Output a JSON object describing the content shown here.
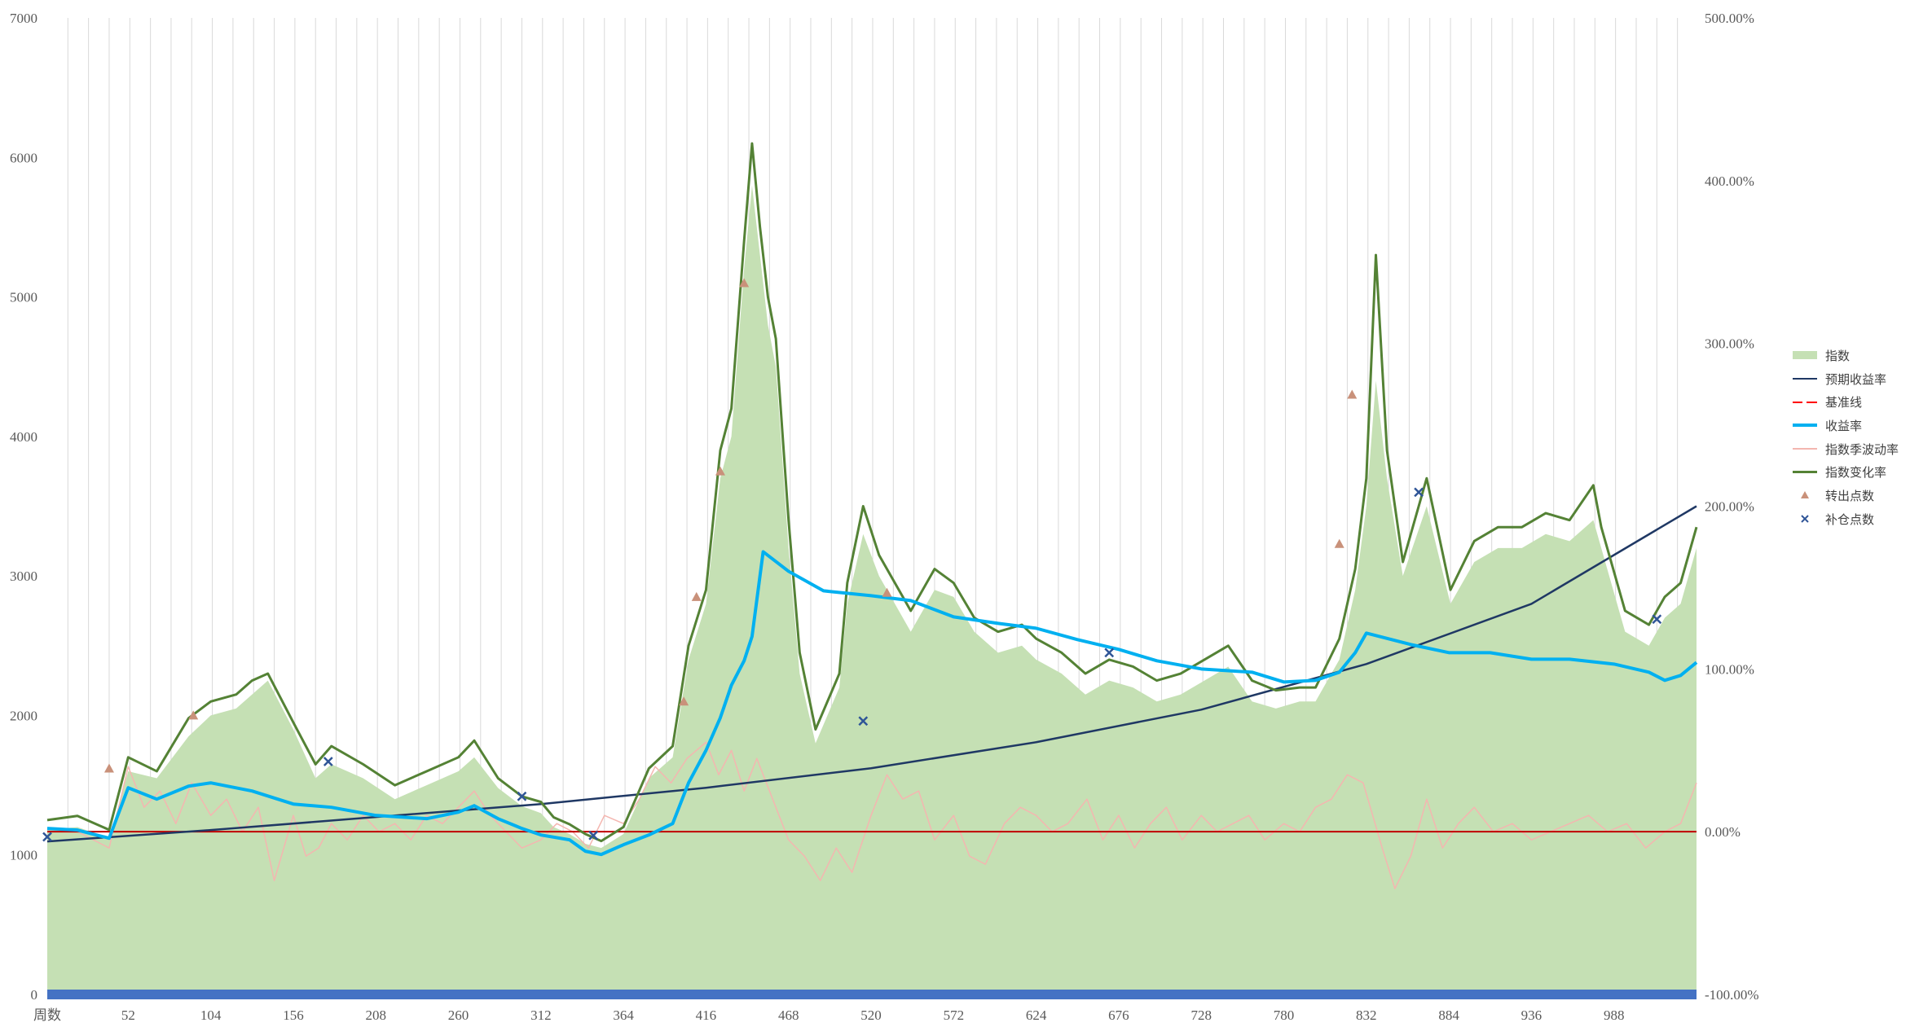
{
  "chart_data": {
    "type": "area",
    "title": "",
    "x_axis": {
      "label": "周数",
      "ticks": [
        52,
        104,
        156,
        208,
        260,
        312,
        364,
        416,
        468,
        520,
        572,
        624,
        676,
        728,
        780,
        832,
        884,
        936,
        988
      ],
      "range": [
        1,
        1040
      ]
    },
    "y_axis_left": {
      "ticks": [
        "0",
        "1000",
        "2000",
        "3000",
        "4000",
        "5000",
        "6000",
        "7000"
      ],
      "range": [
        0,
        7000
      ]
    },
    "y_axis_right": {
      "ticks": [
        "-100.00%",
        "0.00%",
        "100.00%",
        "200.00%",
        "300.00%",
        "400.00%",
        "500.00%"
      ],
      "range": [
        -100,
        500
      ]
    },
    "grid": "vertical",
    "legend_position": "right",
    "colors": {
      "index_area": "#c5e0b4",
      "expected_return": "#1f3864",
      "baseline": "#c00000",
      "return_rate": "#00b0f0",
      "seasonal_volatility": "#f4b6b0",
      "index_change": "#548235",
      "sell_marker": "#c9917a",
      "buy_marker": "#2f5597",
      "bottom_band": "#4472c4"
    },
    "legend": [
      {
        "key": "index_area",
        "label": "指数"
      },
      {
        "key": "expected_return",
        "label": "预期收益率"
      },
      {
        "key": "baseline",
        "label": "基准线"
      },
      {
        "key": "return_rate",
        "label": "收益率"
      },
      {
        "key": "seasonal_volatility",
        "label": "指数季波动率"
      },
      {
        "key": "index_change",
        "label": "指数变化率"
      },
      {
        "key": "sell_marker",
        "label": "转出点数"
      },
      {
        "key": "buy_marker",
        "label": "补仓点数"
      }
    ],
    "series": [
      {
        "key": "index_area",
        "name": "指数",
        "axis": "left",
        "x": [
          1,
          20,
          40,
          52,
          70,
          90,
          104,
          120,
          130,
          140,
          156,
          170,
          180,
          200,
          220,
          240,
          260,
          270,
          285,
          300,
          312,
          320,
          330,
          340,
          350,
          364,
          380,
          395,
          405,
          416,
          425,
          432,
          440,
          445,
          450,
          455,
          460,
          468,
          475,
          485,
          500,
          505,
          515,
          525,
          535,
          545,
          560,
          572,
          585,
          600,
          615,
          624,
          640,
          655,
          670,
          685,
          700,
          715,
          730,
          745,
          760,
          775,
          790,
          800,
          815,
          825,
          832,
          838,
          845,
          855,
          870,
          885,
          900,
          915,
          930,
          945,
          960,
          975,
          980,
          995,
          1010,
          1020,
          1030,
          1040
        ],
        "values": [
          1180,
          1200,
          1120,
          1600,
          1550,
          1850,
          2000,
          2050,
          2150,
          2250,
          1900,
          1550,
          1650,
          1550,
          1400,
          1500,
          1600,
          1700,
          1480,
          1350,
          1300,
          1200,
          1150,
          1080,
          1050,
          1150,
          1550,
          1700,
          2400,
          2800,
          3700,
          4000,
          5200,
          5800,
          5300,
          4800,
          4500,
          3200,
          2300,
          1800,
          2200,
          2800,
          3300,
          3000,
          2800,
          2600,
          2900,
          2850,
          2600,
          2450,
          2500,
          2400,
          2300,
          2150,
          2250,
          2200,
          2100,
          2150,
          2250,
          2350,
          2100,
          2050,
          2100,
          2100,
          2400,
          2900,
          3500,
          4400,
          3700,
          3000,
          3500,
          2800,
          3100,
          3200,
          3200,
          3300,
          3250,
          3400,
          3200,
          2600,
          2500,
          2700,
          2800,
          3200
        ]
      },
      {
        "key": "index_change",
        "name": "指数变化率",
        "axis": "left",
        "x": [
          1,
          20,
          40,
          52,
          70,
          90,
          104,
          120,
          130,
          140,
          156,
          170,
          180,
          200,
          220,
          240,
          260,
          270,
          285,
          300,
          312,
          320,
          330,
          340,
          350,
          364,
          380,
          395,
          405,
          416,
          425,
          432,
          440,
          445,
          450,
          455,
          460,
          468,
          475,
          485,
          500,
          505,
          515,
          525,
          535,
          545,
          560,
          572,
          585,
          600,
          615,
          624,
          640,
          655,
          670,
          685,
          700,
          715,
          730,
          745,
          760,
          775,
          790,
          800,
          815,
          825,
          832,
          838,
          845,
          855,
          870,
          885,
          900,
          915,
          930,
          945,
          960,
          975,
          980,
          995,
          1010,
          1020,
          1030,
          1040
        ],
        "values": [
          1250,
          1280,
          1180,
          1700,
          1600,
          1980,
          2100,
          2150,
          2250,
          2300,
          1950,
          1650,
          1780,
          1650,
          1500,
          1600,
          1700,
          1820,
          1550,
          1420,
          1380,
          1270,
          1220,
          1150,
          1100,
          1200,
          1620,
          1780,
          2500,
          2900,
          3900,
          4200,
          5400,
          6100,
          5500,
          5000,
          4700,
          3400,
          2450,
          1900,
          2300,
          2950,
          3500,
          3150,
          2950,
          2750,
          3050,
          2950,
          2700,
          2600,
          2650,
          2550,
          2450,
          2300,
          2400,
          2350,
          2250,
          2300,
          2400,
          2500,
          2250,
          2180,
          2200,
          2200,
          2550,
          3050,
          3700,
          5300,
          3900,
          3100,
          3700,
          2900,
          3250,
          3350,
          3350,
          3450,
          3400,
          3650,
          3350,
          2750,
          2650,
          2850,
          2950,
          3350
        ]
      },
      {
        "key": "expected_return",
        "name": "预期收益率",
        "axis": "right",
        "x": [
          1,
          104,
          208,
          312,
          416,
          520,
          624,
          728,
          832,
          936,
          1040
        ],
        "values": [
          -6,
          1,
          9,
          17,
          27,
          39,
          55,
          75,
          103,
          140,
          200
        ]
      },
      {
        "key": "baseline",
        "name": "基准线",
        "axis": "right",
        "x": [
          1,
          1040
        ],
        "values": [
          0,
          0
        ]
      },
      {
        "key": "return_rate",
        "name": "收益率",
        "axis": "right",
        "x": [
          1,
          20,
          40,
          52,
          70,
          90,
          104,
          130,
          156,
          180,
          208,
          240,
          260,
          270,
          285,
          300,
          312,
          330,
          340,
          350,
          364,
          380,
          395,
          405,
          416,
          425,
          432,
          440,
          445,
          452,
          468,
          490,
          520,
          545,
          572,
          600,
          624,
          650,
          676,
          700,
          728,
          760,
          780,
          800,
          815,
          825,
          832,
          860,
          884,
          910,
          936,
          960,
          988,
          1010,
          1020,
          1030,
          1040
        ],
        "values": [
          2,
          1,
          -4,
          27,
          20,
          28,
          30,
          25,
          17,
          15,
          10,
          8,
          12,
          16,
          8,
          2,
          -2,
          -5,
          -12,
          -14,
          -8,
          -2,
          5,
          30,
          50,
          70,
          90,
          105,
          120,
          172,
          160,
          148,
          145,
          142,
          132,
          128,
          125,
          118,
          112,
          105,
          100,
          98,
          92,
          93,
          98,
          110,
          122,
          115,
          110,
          110,
          106,
          106,
          103,
          98,
          93,
          96,
          104
        ]
      },
      {
        "key": "seasonal_volatility",
        "name": "指数季波动率",
        "axis": "right",
        "x": [
          1,
          20,
          40,
          52,
          62,
          72,
          82,
          92,
          104,
          114,
          124,
          134,
          144,
          156,
          164,
          172,
          180,
          190,
          200,
          210,
          220,
          230,
          240,
          250,
          260,
          270,
          280,
          290,
          300,
          312,
          322,
          332,
          342,
          352,
          364,
          374,
          384,
          394,
          404,
          416,
          424,
          432,
          440,
          448,
          458,
          468,
          478,
          488,
          498,
          508,
          520,
          530,
          540,
          550,
          560,
          572,
          582,
          592,
          604,
          614,
          624,
          634,
          644,
          656,
          666,
          676,
          686,
          696,
          706,
          716,
          728,
          738,
          748,
          758,
          768,
          780,
          790,
          800,
          810,
          820,
          830,
          836,
          842,
          850,
          860,
          870,
          880,
          890,
          900,
          912,
          924,
          936,
          948,
          960,
          972,
          984,
          996,
          1008,
          1020,
          1030,
          1040
        ],
        "values": [
          2,
          0,
          -10,
          40,
          15,
          25,
          5,
          30,
          10,
          20,
          0,
          15,
          -30,
          10,
          -15,
          -10,
          5,
          -5,
          10,
          0,
          5,
          -5,
          10,
          5,
          15,
          25,
          10,
          0,
          -10,
          -5,
          5,
          0,
          -10,
          10,
          5,
          20,
          40,
          30,
          45,
          55,
          35,
          50,
          25,
          45,
          20,
          -5,
          -15,
          -30,
          -10,
          -25,
          10,
          35,
          20,
          25,
          -5,
          10,
          -15,
          -20,
          5,
          15,
          10,
          0,
          5,
          20,
          -5,
          10,
          -10,
          5,
          15,
          -5,
          10,
          0,
          5,
          10,
          -5,
          5,
          0,
          15,
          20,
          35,
          30,
          10,
          -10,
          -35,
          -15,
          20,
          -10,
          5,
          15,
          0,
          5,
          -5,
          0,
          5,
          10,
          0,
          5,
          -10,
          0,
          5,
          30
        ]
      },
      {
        "key": "sell_marker",
        "name": "转出点数",
        "axis": "left",
        "x": [
          40,
          93,
          402,
          410,
          425,
          440,
          530,
          815,
          823
        ],
        "values": [
          1620,
          2000,
          2100,
          2850,
          3750,
          5100,
          2880,
          3230,
          4300
        ]
      },
      {
        "key": "buy_marker",
        "name": "补仓点数",
        "axis": "left",
        "x": [
          1,
          178,
          300,
          345,
          515,
          670,
          865,
          1015
        ],
        "values": [
          1130,
          1670,
          1420,
          1140,
          1960,
          2450,
          3600,
          2690
        ]
      }
    ]
  }
}
